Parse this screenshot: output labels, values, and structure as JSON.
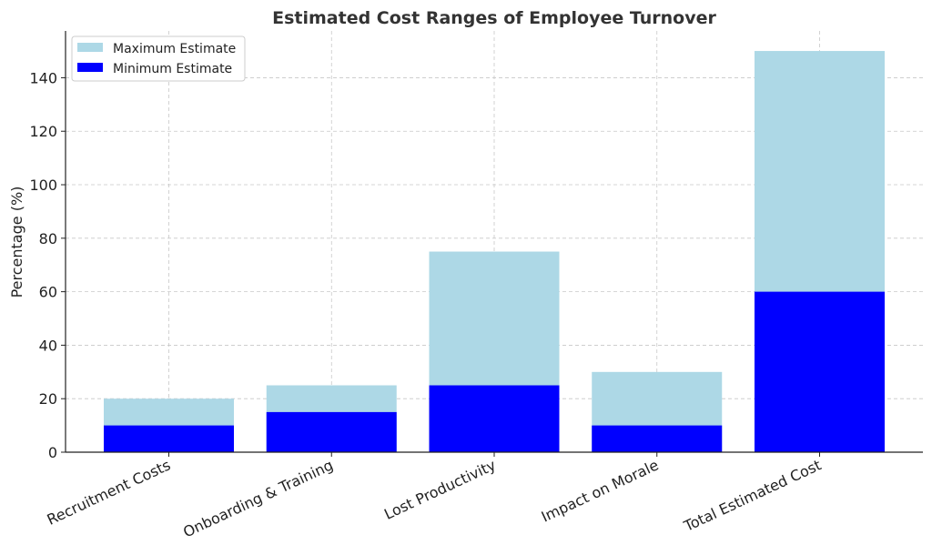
{
  "chart_data": {
    "type": "bar",
    "title": "Estimated Cost Ranges of Employee Turnover",
    "xlabel": "",
    "ylabel": "Percentage (%)",
    "categories": [
      "Recruitment Costs",
      "Onboarding & Training",
      "Lost Productivity",
      "Impact on Morale",
      "Total Estimated Cost"
    ],
    "series": [
      {
        "name": "Maximum Estimate",
        "values": [
          20,
          25,
          75,
          30,
          150
        ],
        "color": "#add8e6"
      },
      {
        "name": "Minimum Estimate",
        "values": [
          10,
          15,
          25,
          10,
          60
        ],
        "color": "#0000ff"
      }
    ],
    "ylim": [
      0,
      157.5
    ],
    "yticks": [
      0,
      20,
      40,
      60,
      80,
      100,
      120,
      140
    ],
    "grid": true,
    "legend": "top-left",
    "bar_mode": "overlay"
  }
}
